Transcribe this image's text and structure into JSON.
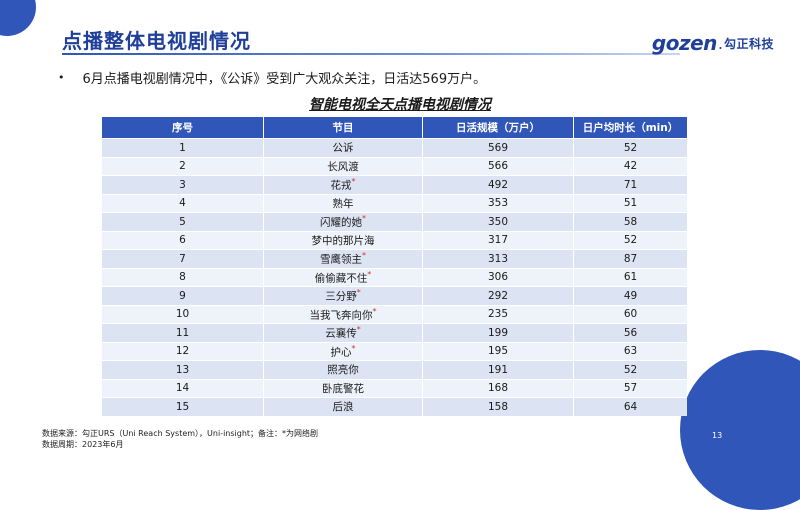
{
  "header": {
    "title": "点播整体电视剧情况"
  },
  "logo": {
    "mark": "gozen",
    "sep": ".",
    "text": "勾正科技"
  },
  "bullet": "6月点播电视剧情况中，《公诉》受到广大观众关注，日活达569万户。",
  "table": {
    "title": "智能电视全天点播电视剧情况",
    "columns": [
      "序号",
      "节目",
      "日活规模（万户）",
      "日户均时长（min）"
    ],
    "rows": [
      {
        "no": "1",
        "name": "公诉",
        "mark": "",
        "dau": "569",
        "duration": "52"
      },
      {
        "no": "2",
        "name": "长风渡",
        "mark": "",
        "dau": "566",
        "duration": "42"
      },
      {
        "no": "3",
        "name": "花戎",
        "mark": "*",
        "dau": "492",
        "duration": "71"
      },
      {
        "no": "4",
        "name": "熟年",
        "mark": "",
        "dau": "353",
        "duration": "51"
      },
      {
        "no": "5",
        "name": "闪耀的她",
        "mark": "*",
        "dau": "350",
        "duration": "58"
      },
      {
        "no": "6",
        "name": "梦中的那片海",
        "mark": "",
        "dau": "317",
        "duration": "52"
      },
      {
        "no": "7",
        "name": "雪鹰领主",
        "mark": "*",
        "dau": "313",
        "duration": "87"
      },
      {
        "no": "8",
        "name": "偷偷藏不住",
        "mark": "*",
        "dau": "306",
        "duration": "61"
      },
      {
        "no": "9",
        "name": "三分野",
        "mark": "*",
        "dau": "292",
        "duration": "49"
      },
      {
        "no": "10",
        "name": "当我飞奔向你",
        "mark": "*",
        "dau": "235",
        "duration": "60"
      },
      {
        "no": "11",
        "name": "云襄传",
        "mark": "*",
        "dau": "199",
        "duration": "56"
      },
      {
        "no": "12",
        "name": "护心",
        "mark": "*",
        "dau": "195",
        "duration": "63"
      },
      {
        "no": "13",
        "name": "照亮你",
        "mark": "",
        "dau": "191",
        "duration": "52"
      },
      {
        "no": "14",
        "name": "卧底警花",
        "mark": "",
        "dau": "168",
        "duration": "57"
      },
      {
        "no": "15",
        "name": "后浪",
        "mark": "",
        "dau": "158",
        "duration": "64"
      }
    ]
  },
  "footnote": {
    "line1": "数据来源：勾正URS（Uni Reach System），Uni-insight；备注：*为网络剧",
    "line2": "数据周期：2023年6月"
  },
  "page_number": "13",
  "colors": {
    "brand": "#2f56b8",
    "title": "#1f3f9a",
    "star": "#d63030"
  }
}
